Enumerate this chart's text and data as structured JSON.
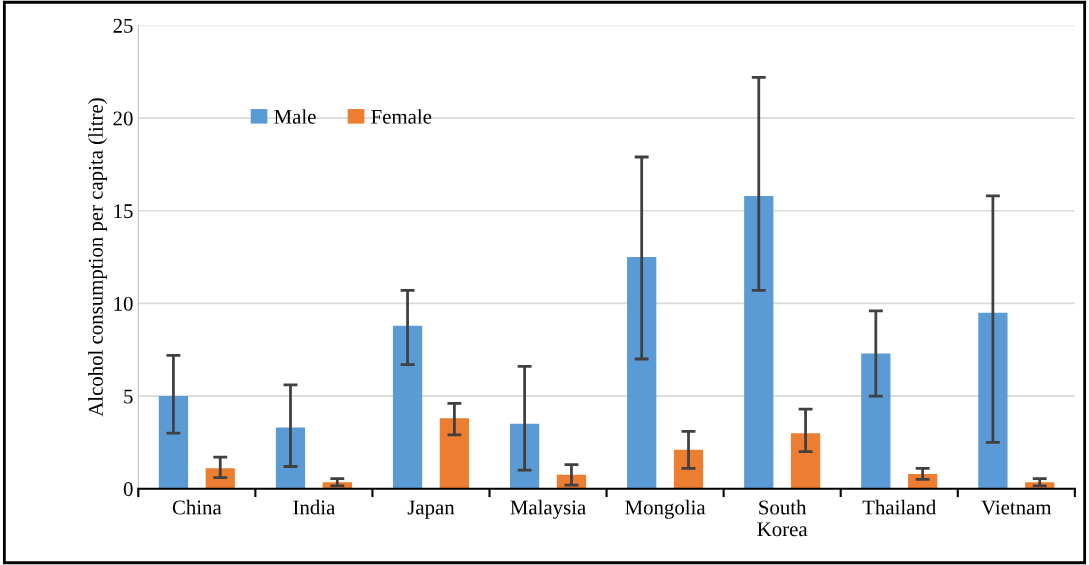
{
  "chart_data": {
    "type": "bar",
    "ylabel": "Alcohol consumption per capita (litre)",
    "categories": [
      "China",
      "India",
      "Japan",
      "Malaysia",
      "Mongolia",
      "South\nKorea",
      "Thailand",
      "Vietnam"
    ],
    "series": [
      {
        "name": "Male",
        "color": "#5b9bd5",
        "values": [
          5.0,
          3.3,
          8.8,
          3.5,
          12.5,
          15.8,
          7.3,
          9.5
        ],
        "errors": [
          [
            3.0,
            7.2
          ],
          [
            1.2,
            5.6
          ],
          [
            6.7,
            10.7
          ],
          [
            1.0,
            6.6
          ],
          [
            7.0,
            17.9
          ],
          [
            10.7,
            22.2
          ],
          [
            5.0,
            9.6
          ],
          [
            2.5,
            15.8
          ]
        ]
      },
      {
        "name": "Female",
        "color": "#ed7d31",
        "values": [
          1.1,
          0.35,
          3.8,
          0.75,
          2.1,
          3.0,
          0.8,
          0.35
        ],
        "errors": [
          [
            0.6,
            1.7
          ],
          [
            0.15,
            0.55
          ],
          [
            2.9,
            4.6
          ],
          [
            0.2,
            1.3
          ],
          [
            1.1,
            3.1
          ],
          [
            2.0,
            4.3
          ],
          [
            0.5,
            1.1
          ],
          [
            0.15,
            0.55
          ]
        ]
      }
    ],
    "ylim": [
      0,
      25
    ],
    "yticks": [
      0,
      5,
      10,
      15,
      20,
      25
    ],
    "grid": "y",
    "legend": "top left"
  }
}
